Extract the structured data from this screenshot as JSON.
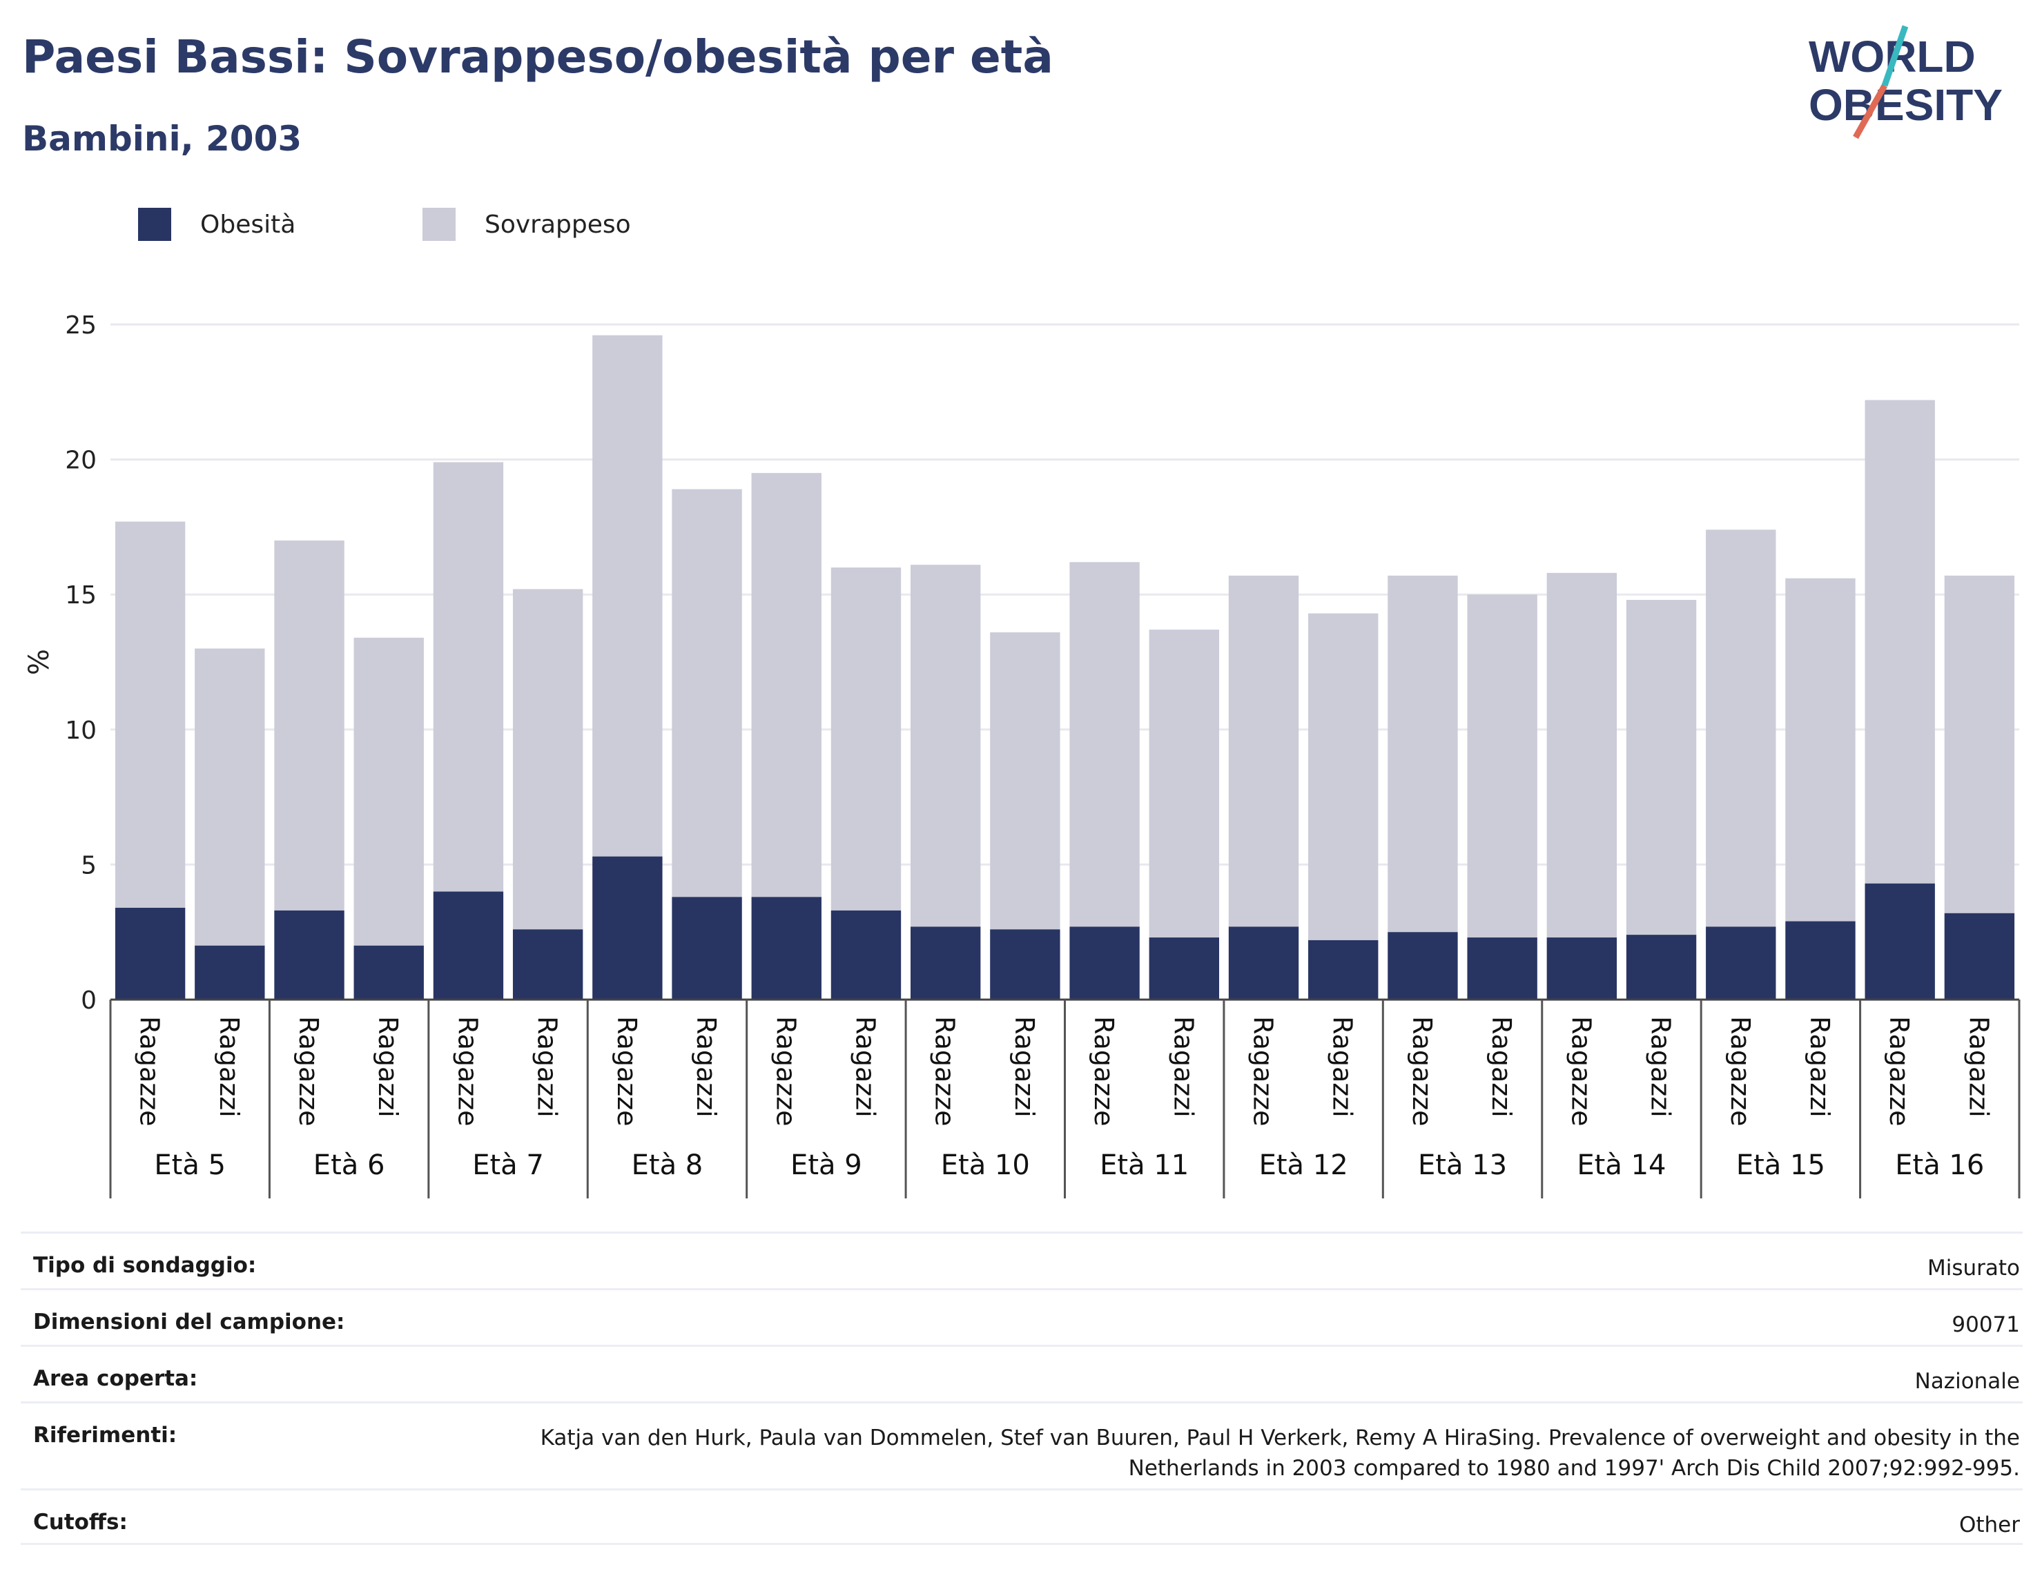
{
  "header": {
    "title": "Paesi Bassi: Sovrappeso/obesità per età",
    "subtitle": "Bambini, 2003"
  },
  "logo": {
    "line1": "WORLD",
    "line2": "OBESITY"
  },
  "colors": {
    "obesity": "#283563",
    "overweight": "#cbccd8",
    "text": "#2c3a68",
    "accent1": "#3ab8c0",
    "accent2": "#e06a55"
  },
  "chart_data": {
    "type": "bar",
    "stacked": true,
    "ylabel": "%",
    "ylim": [
      0,
      25
    ],
    "yticks": [
      0,
      5,
      10,
      15,
      20,
      25
    ],
    "grid": true,
    "legend_position": "top-left",
    "groups": [
      "Età 5",
      "Età 6",
      "Età 7",
      "Età 8",
      "Età 9",
      "Età 10",
      "Età 11",
      "Età 12",
      "Età 13",
      "Età 14",
      "Età 15",
      "Età 16"
    ],
    "subcategories": [
      "Ragazze",
      "Ragazzi"
    ],
    "series": [
      {
        "name": "Obesità",
        "values": [
          3.4,
          2.0,
          3.3,
          2.0,
          4.0,
          2.6,
          5.3,
          3.8,
          3.8,
          3.3,
          2.7,
          2.6,
          2.7,
          2.3,
          2.7,
          2.2,
          2.5,
          2.3,
          2.3,
          2.4,
          2.7,
          2.9,
          4.3,
          3.2
        ]
      },
      {
        "name": "Sovrappeso",
        "values": [
          14.3,
          11.0,
          13.7,
          11.4,
          15.9,
          12.6,
          19.3,
          15.1,
          15.7,
          12.7,
          13.4,
          11.0,
          13.5,
          11.4,
          13.0,
          12.1,
          13.2,
          12.7,
          13.5,
          12.4,
          14.7,
          12.7,
          17.9,
          12.5
        ]
      }
    ]
  },
  "info": [
    {
      "label": "Tipo di sondaggio:",
      "value": "Misurato"
    },
    {
      "label": "Dimensioni del campione:",
      "value": "90071"
    },
    {
      "label": "Area coperta:",
      "value": "Nazionale"
    },
    {
      "label": "Riferimenti:",
      "value": "Katja van den Hurk, Paula van Dommelen, Stef van Buuren, Paul H Verkerk, Remy A HiraSing. Prevalence of overweight and obesity in the Netherlands in 2003 compared to 1980 and 1997' Arch Dis Child 2007;92:992-995."
    },
    {
      "label": "Cutoffs:",
      "value": "Other"
    }
  ]
}
